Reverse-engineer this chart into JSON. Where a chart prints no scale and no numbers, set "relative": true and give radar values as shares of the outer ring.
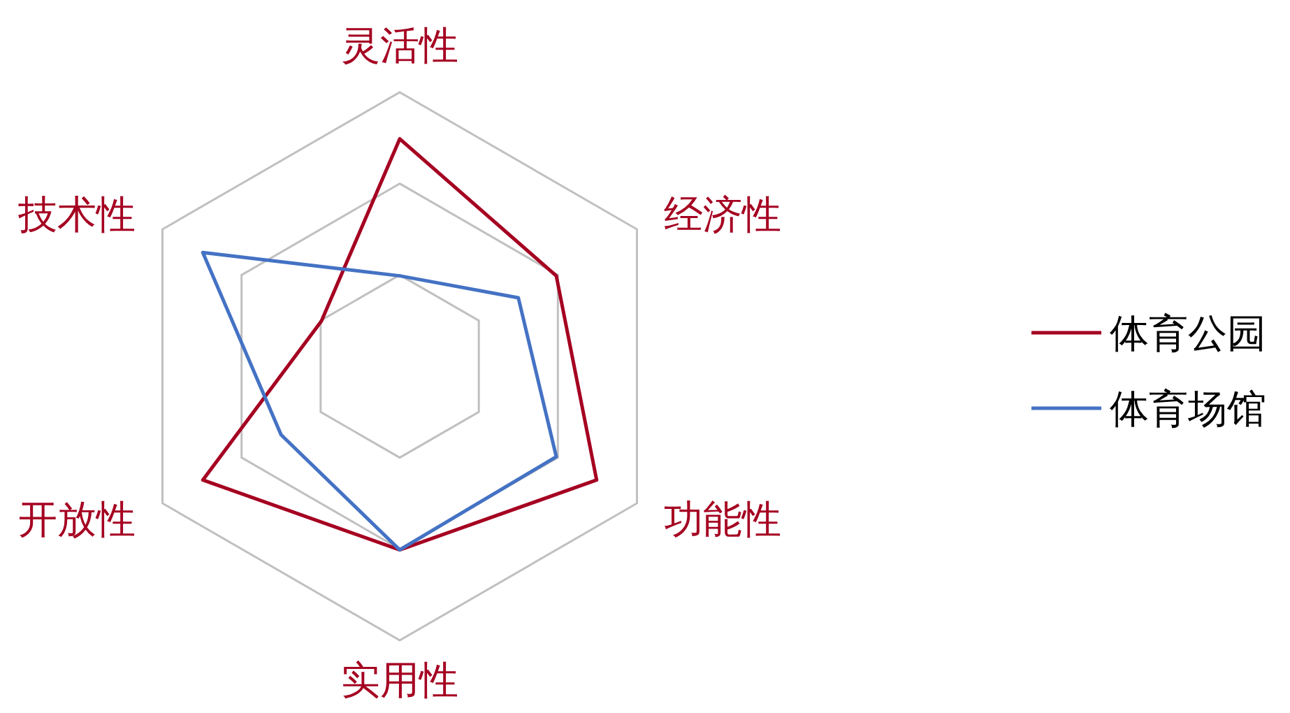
{
  "chart_data": {
    "type": "radar",
    "relative": true,
    "grid": true,
    "legend": "right",
    "line_style": "solid",
    "marker": "none",
    "categories": [
      "灵活性",
      "经济性",
      "功能性",
      "实用性",
      "开放性",
      "技术性"
    ],
    "series": [
      {
        "name": "体育公园",
        "color": "#a50021",
        "values": [
          0.83,
          0.66,
          0.83,
          0.67,
          0.83,
          0.33
        ]
      },
      {
        "name": "体育场馆",
        "color": "#4472c4",
        "values": [
          0.33,
          0.5,
          0.66,
          0.67,
          0.5,
          0.83
        ]
      }
    ]
  }
}
